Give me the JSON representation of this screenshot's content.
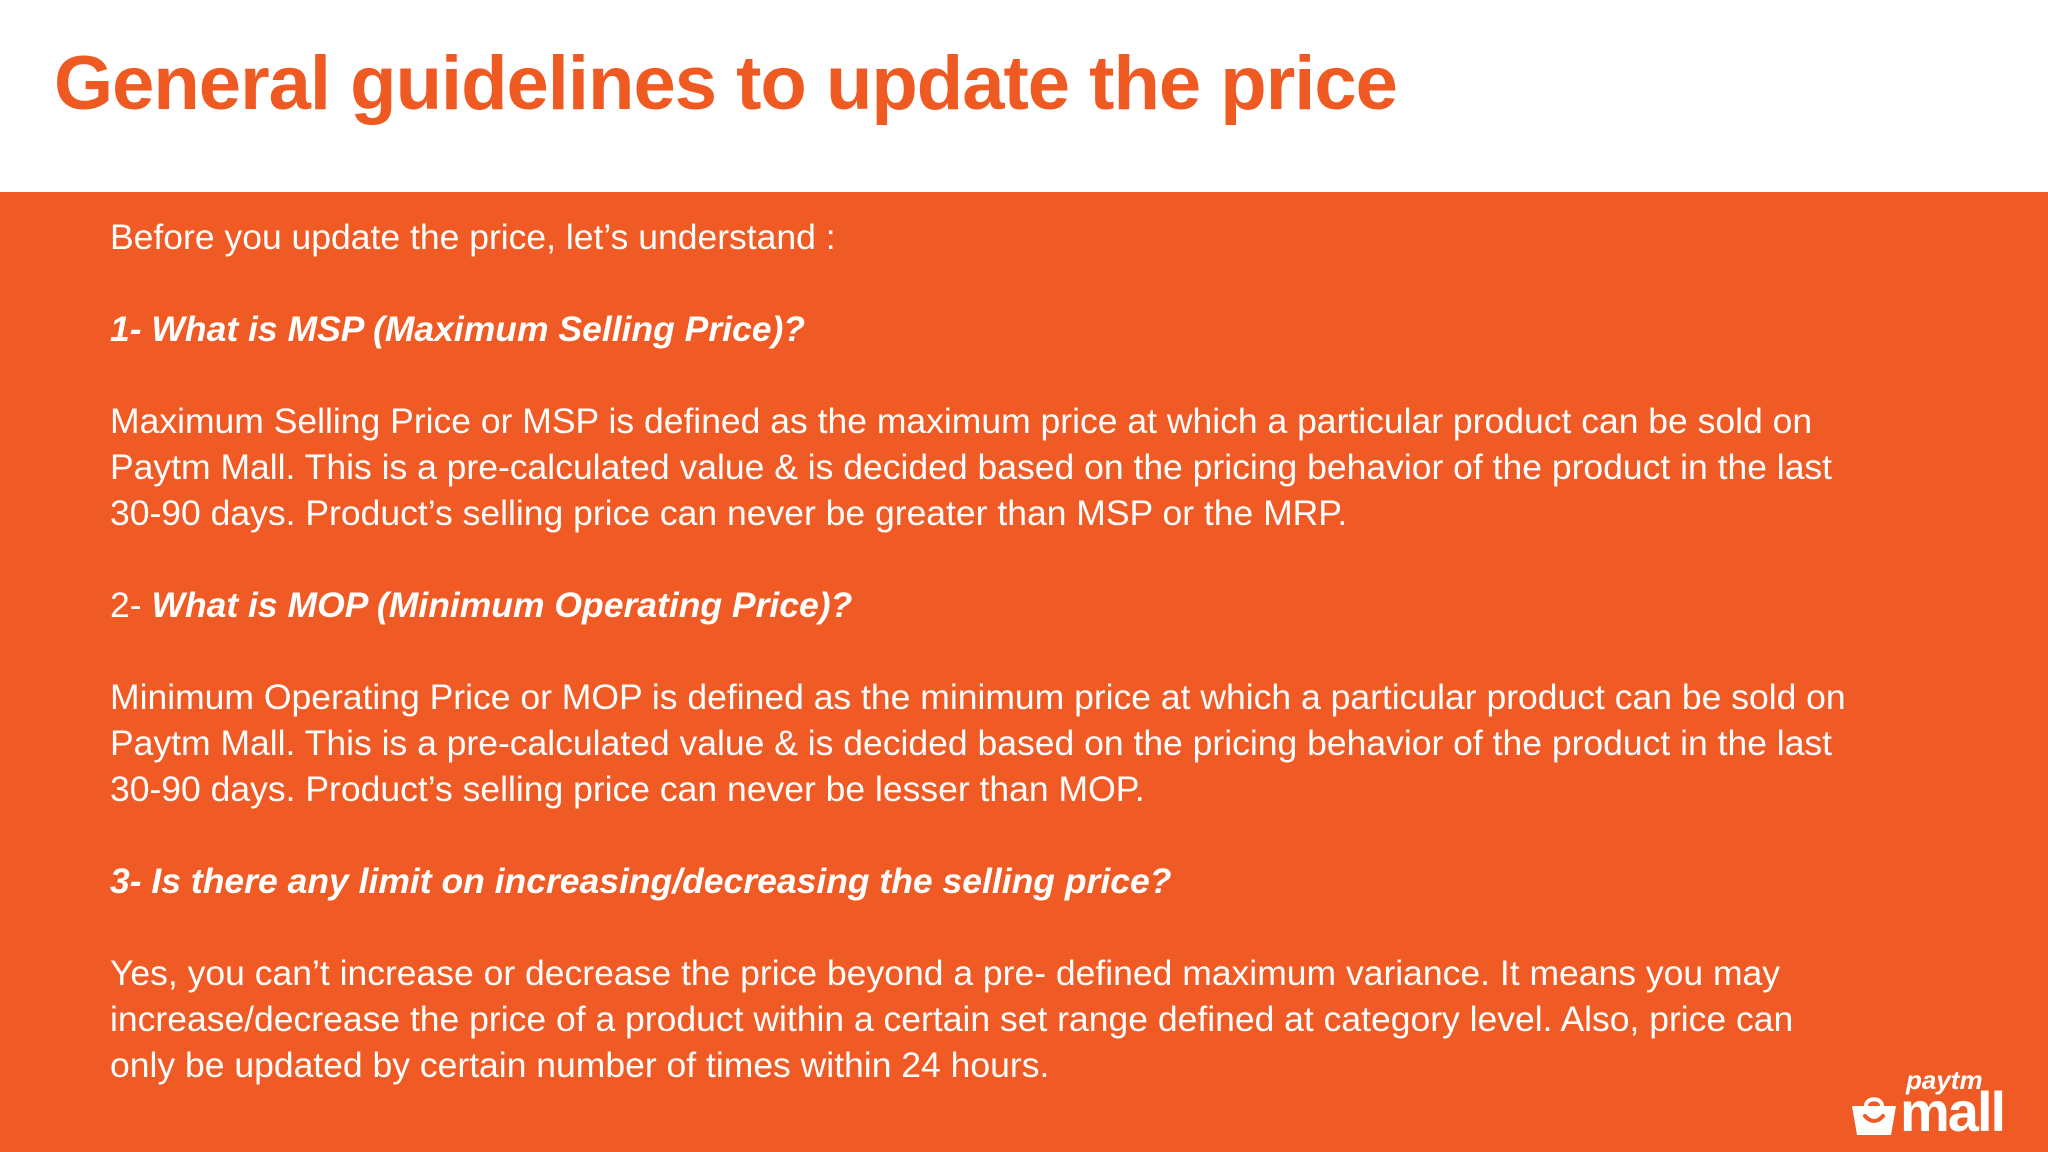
{
  "colors": {
    "accent": "#ee5a22",
    "panel": "#f05a24",
    "text_light": "#ffffff",
    "background": "#ffffff"
  },
  "slide": {
    "title": "General guidelines to update the price"
  },
  "content": {
    "intro": "Before you update the price, let’s understand :",
    "sections": [
      {
        "question": "1- What is MSP (Maximum Selling Price)?",
        "answer_lines": [
          "Maximum Selling Price or MSP is defined as the maximum price at which a particular product can be sold on",
          "Paytm Mall. This is a pre-calculated value & is decided based on the pricing behavior of the product in the last",
          "30-90 days. Product’s selling price can never be greater than MSP or the MRP."
        ]
      },
      {
        "question_prefix": "2- ",
        "question": "What is MOP (Minimum Operating Price)?",
        "answer_lines": [
          "Minimum Operating Price or MOP is defined as the minimum price at which a particular product can be sold on",
          "Paytm Mall. This is a pre-calculated value & is decided based on the pricing behavior of the product in the last",
          "30-90 days. Product’s selling price can never be lesser than MOP."
        ]
      },
      {
        "question": "3- Is there any limit on increasing/decreasing the selling price?",
        "answer_lines": [
          "Yes, you can’t increase or decrease the price beyond a pre- defined maximum variance. It means you may",
          "increase/decrease the price of a product within a certain set range defined at category level. Also, price can",
          "only be updated by certain number of times within 24 hours."
        ]
      }
    ]
  },
  "logo": {
    "icon": "shopping-bag-icon",
    "top_text": "paytm",
    "bottom_text": "mall"
  }
}
